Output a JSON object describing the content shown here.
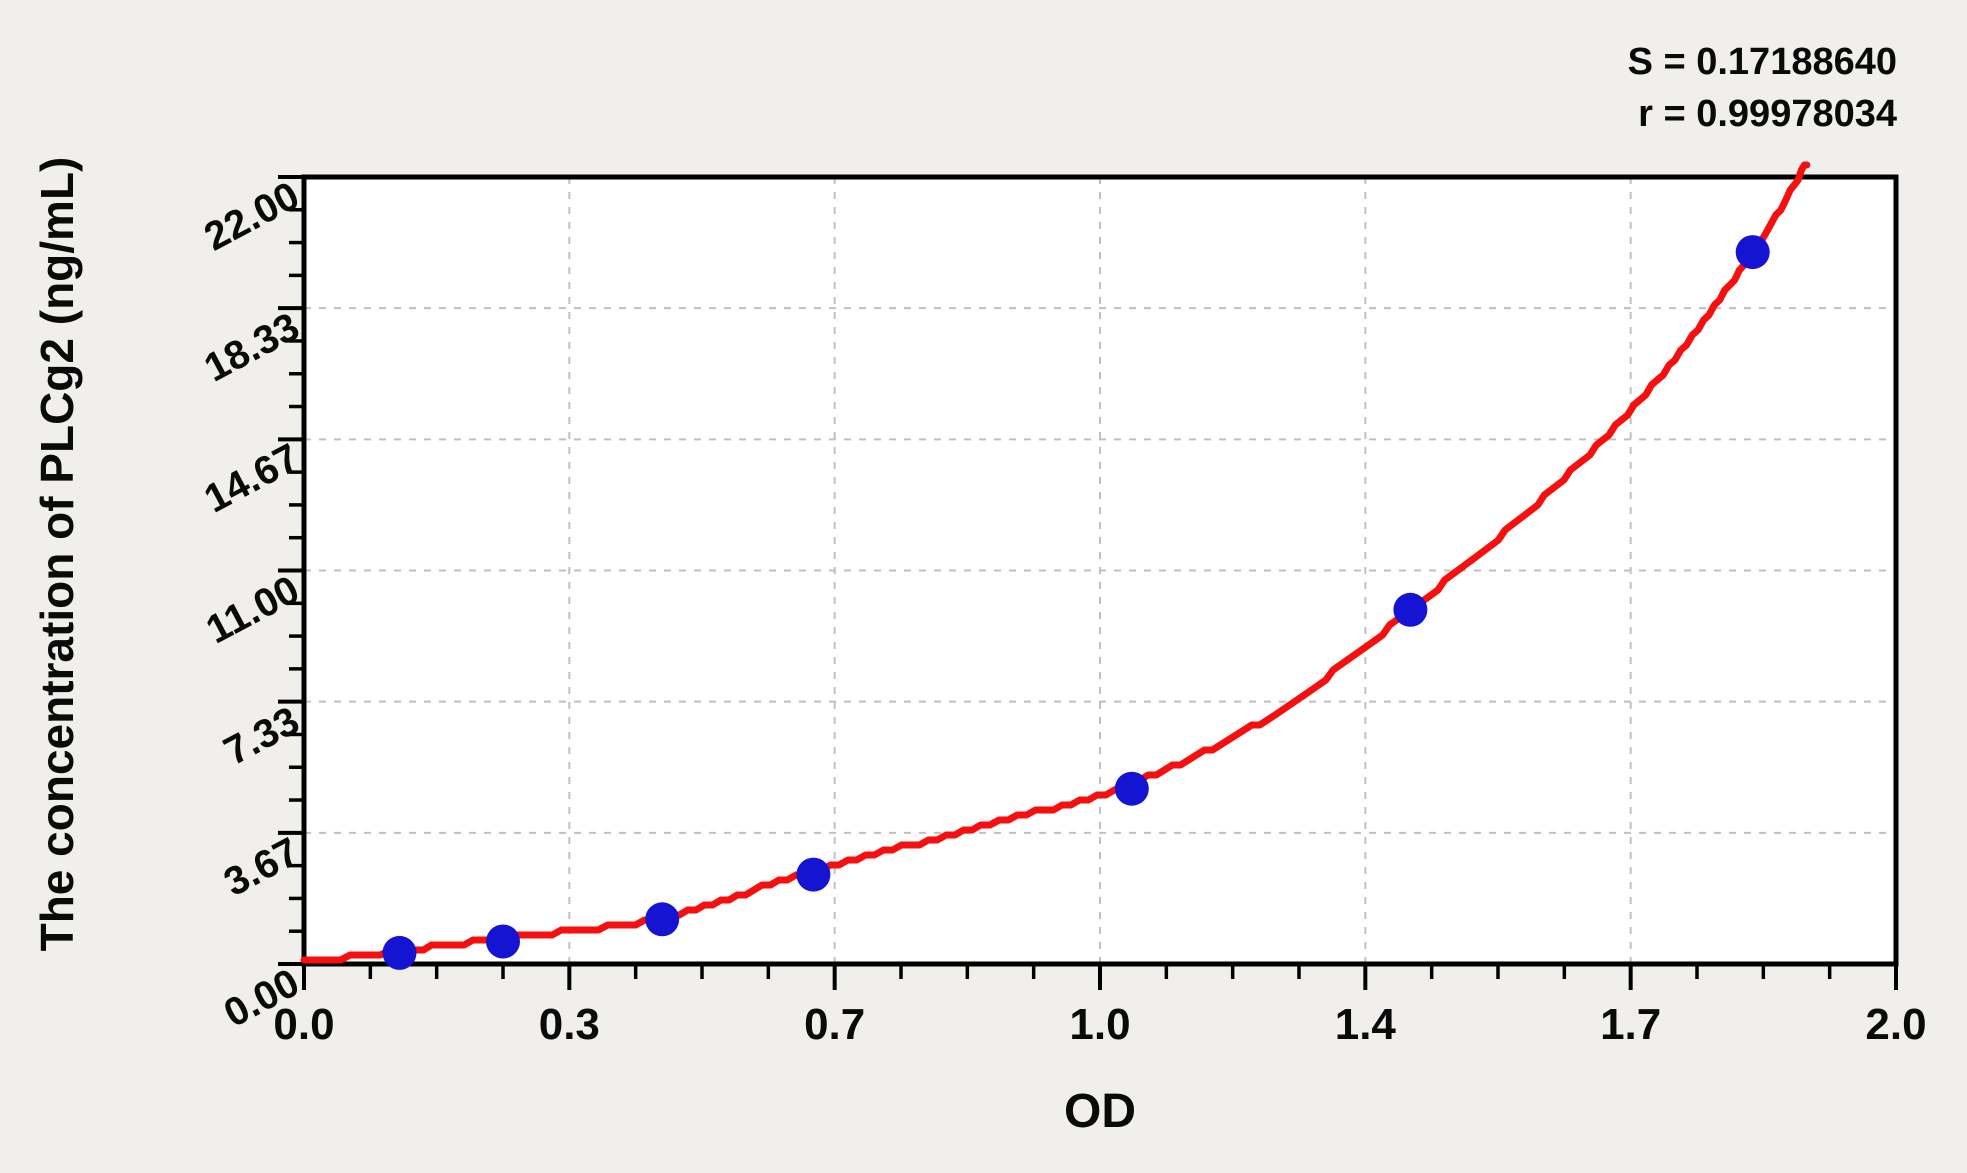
{
  "chart_data": {
    "type": "scatter",
    "title": "",
    "xlabel": "OD",
    "ylabel": "The concentration of PLCg2 (ng/mL)",
    "xlim": [
      0.0,
      2.0
    ],
    "ylim": [
      0.0,
      22.0
    ],
    "x_tick_labels": [
      "0.0",
      "0.3",
      "0.7",
      "1.0",
      "1.4",
      "1.7",
      "2.0"
    ],
    "y_tick_labels": [
      "0.00",
      "3.67",
      "7.33",
      "11.00",
      "14.67",
      "18.33",
      "22.00"
    ],
    "minor_ticks_per_major_interval": 3,
    "grid": true,
    "legend": "none",
    "stats": {
      "s_label": "S = 0.17188640",
      "r_label": "r = 0.99978034",
      "S": "0.17188640",
      "r": "0.99978034"
    },
    "series": [
      {
        "name": "standard-points",
        "type": "scatter",
        "color": "#1414d2",
        "x": [
          0.12,
          0.25,
          0.45,
          0.64,
          1.04,
          1.39,
          1.82
        ],
        "y": [
          0.31,
          0.63,
          1.25,
          2.5,
          4.9,
          9.9,
          19.9
        ]
      },
      {
        "name": "fitted-curve",
        "type": "line",
        "color": "#f50f0f",
        "x": [
          0.0,
          0.12,
          0.25,
          0.45,
          0.64,
          0.85,
          1.04,
          1.22,
          1.39,
          1.55,
          1.7,
          1.82,
          1.888
        ],
        "y": [
          0.05,
          0.36,
          0.72,
          1.3,
          2.6,
          3.85,
          5.05,
          7.0,
          9.9,
          12.9,
          16.3,
          19.9,
          22.4
        ]
      }
    ]
  },
  "colors": {
    "background": "#f0efec",
    "plot_background": "#ffffff",
    "axis": "#000000",
    "grid": "#c0c0c0",
    "curve": "#f50f0f",
    "points": "#1414d2",
    "text": "#0a0a0a"
  }
}
